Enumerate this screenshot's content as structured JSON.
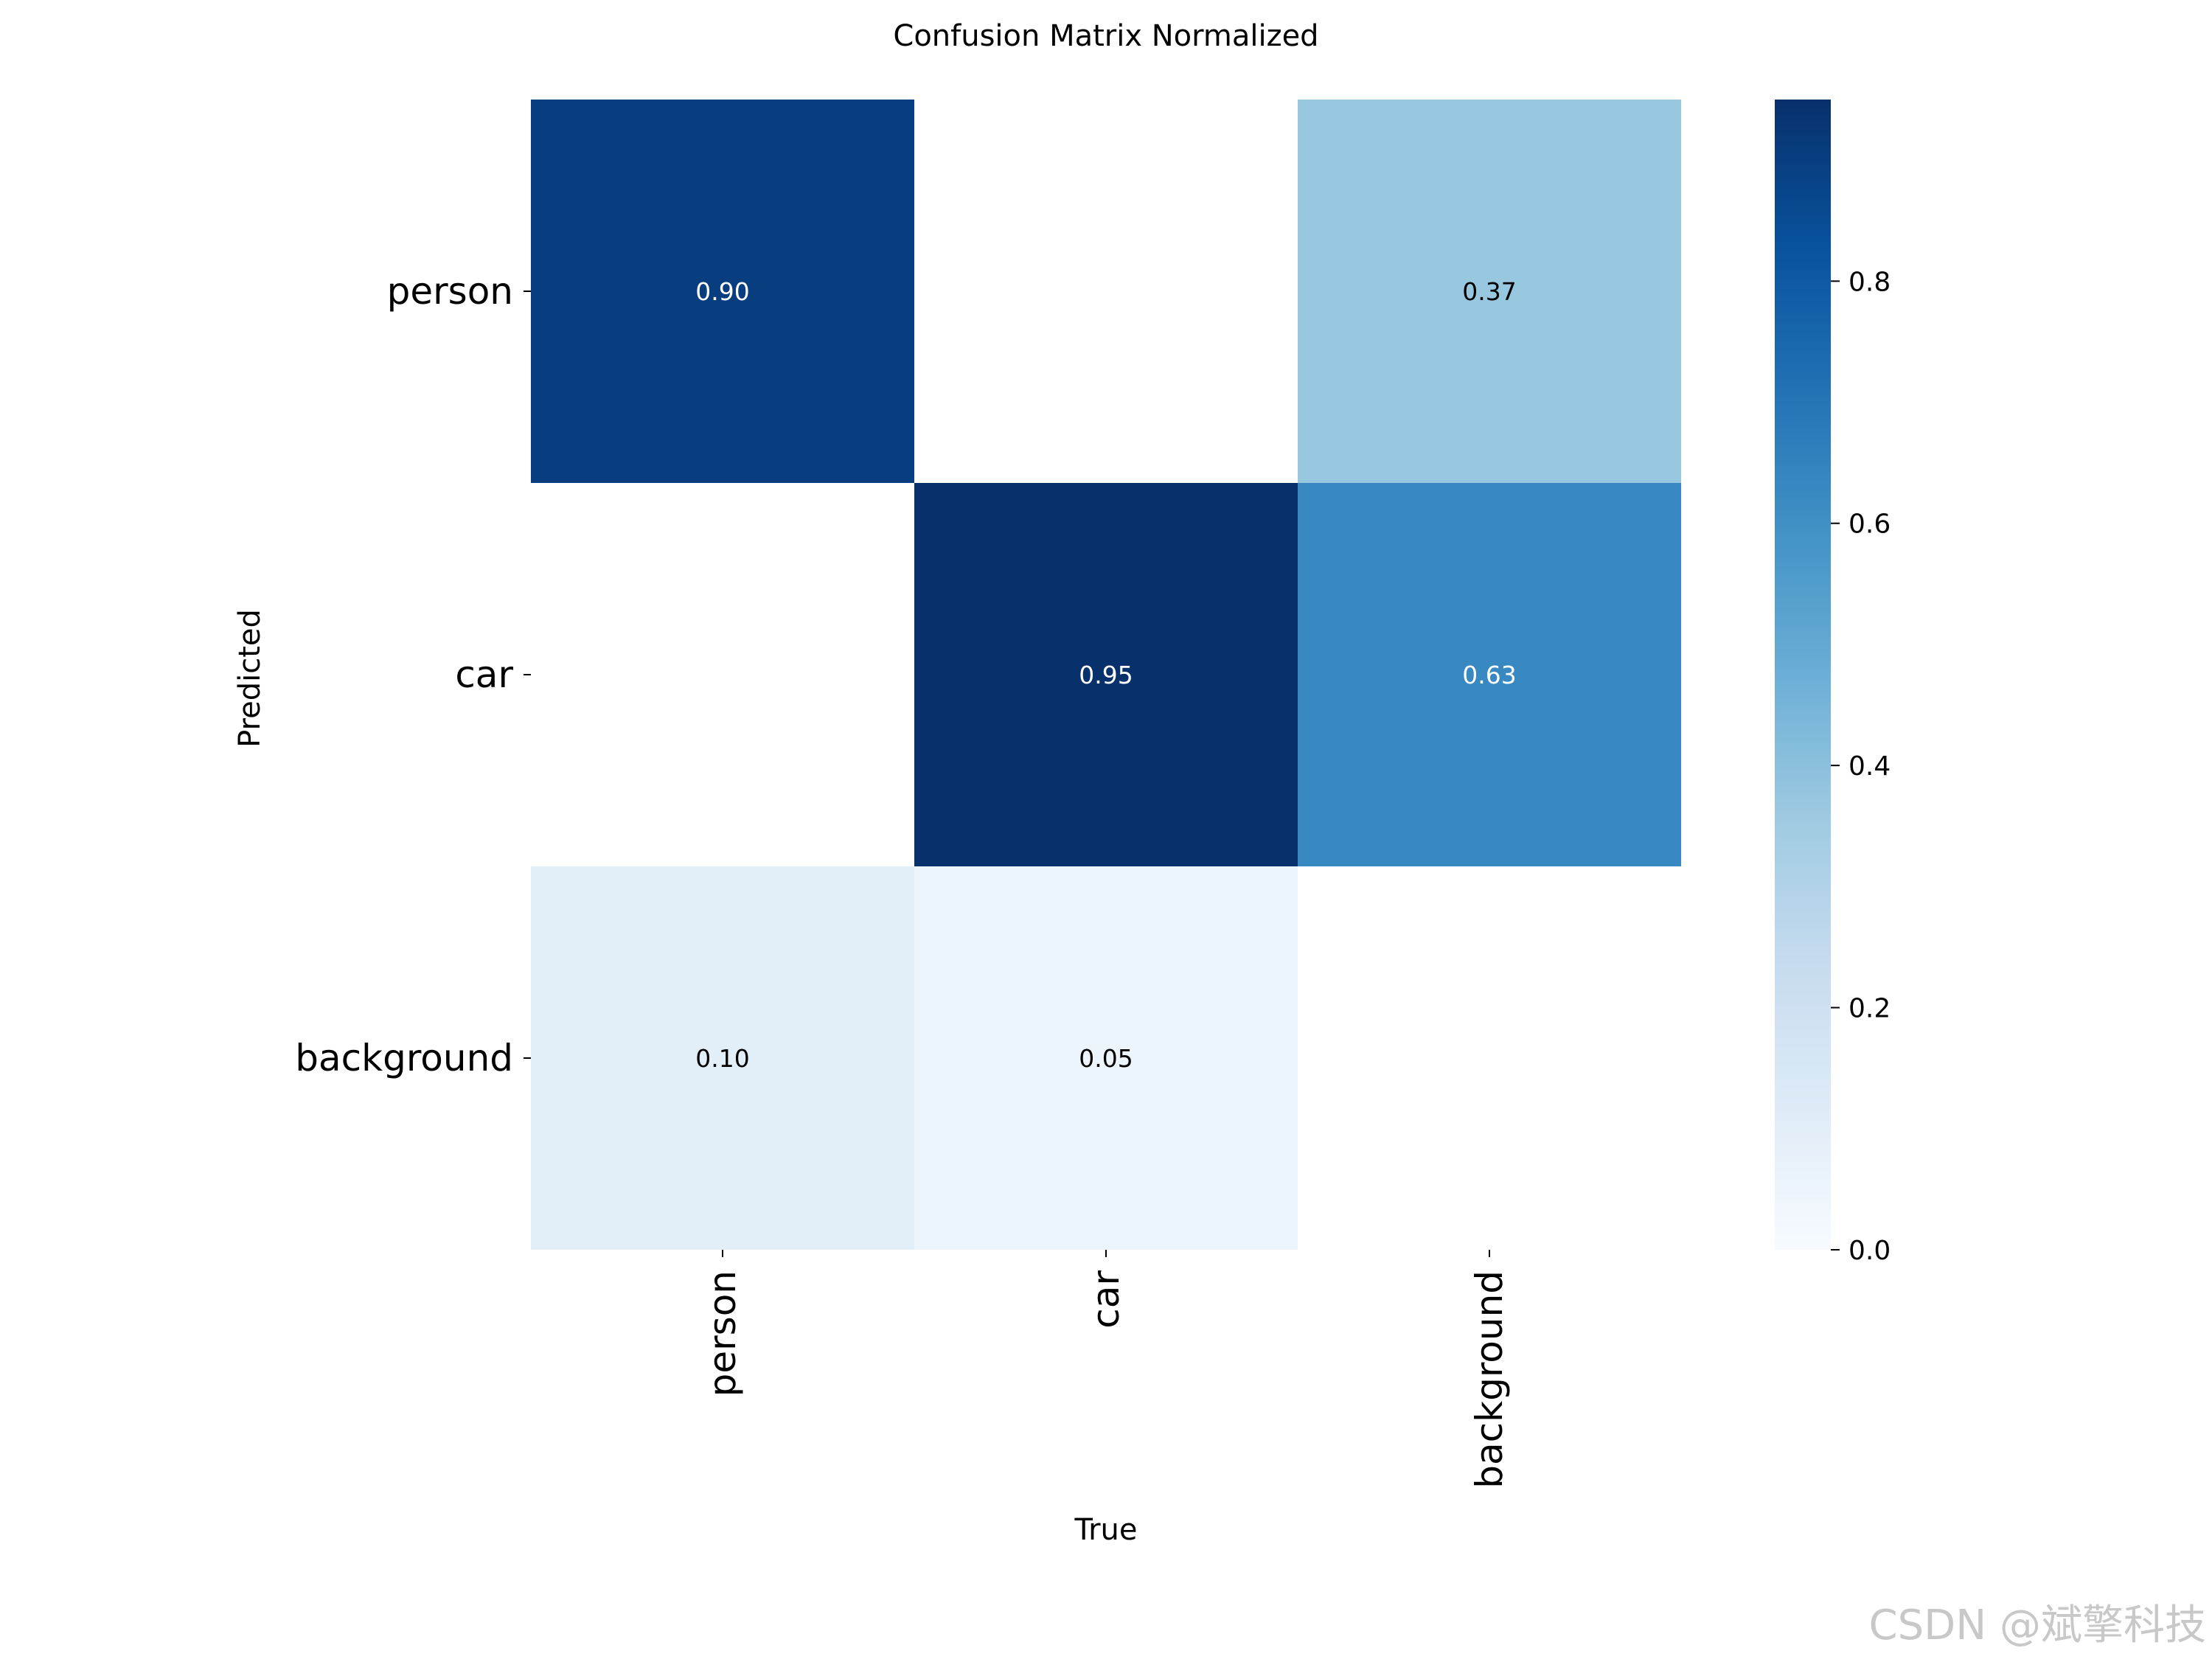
{
  "chart_data": {
    "type": "heatmap",
    "title": "Confusion Matrix Normalized",
    "xlabel": "True",
    "ylabel": "Predicted",
    "x_categories": [
      "person",
      "car",
      "background"
    ],
    "y_categories": [
      "person",
      "car",
      "background"
    ],
    "values": [
      [
        0.9,
        null,
        0.37
      ],
      [
        null,
        0.95,
        0.63
      ],
      [
        0.1,
        0.05,
        null
      ]
    ],
    "value_format": "2 decimals; empty cells (0) are blank",
    "colormap": "Blues",
    "colorbar": {
      "range": [
        0.0,
        0.95
      ],
      "ticks": [
        0.0,
        0.2,
        0.4,
        0.6,
        0.8
      ],
      "tick_labels": [
        "0.0",
        "0.2",
        "0.4",
        "0.6",
        "0.8"
      ]
    }
  },
  "watermark": "CSDN @斌擎科技"
}
